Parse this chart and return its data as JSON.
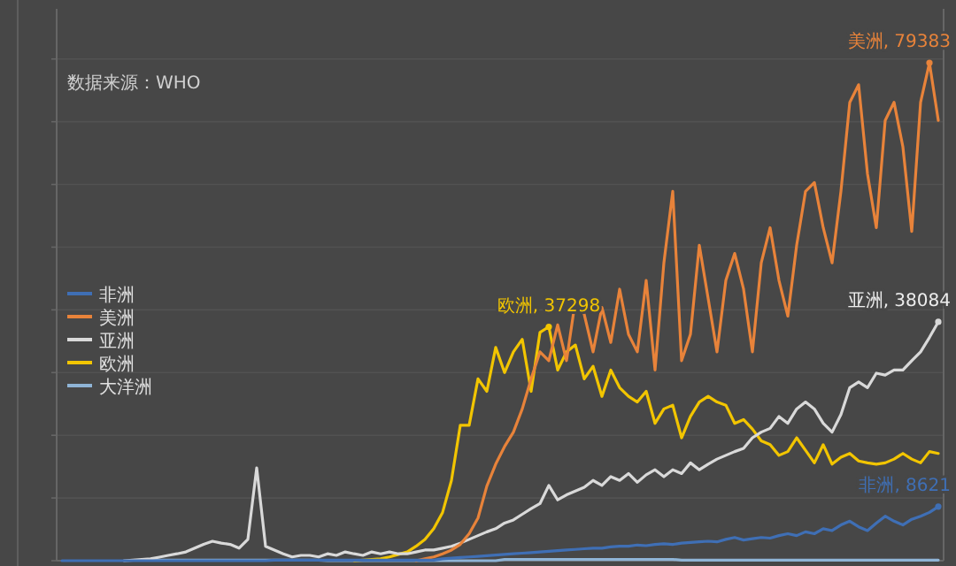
{
  "chart_data": {
    "type": "line",
    "annotations": [
      "数据来源：WHO"
    ],
    "categories": [
      null,
      null,
      null,
      null,
      null,
      null,
      null,
      null,
      null,
      null,
      null,
      null,
      null,
      null,
      null,
      null,
      null,
      null,
      null,
      null,
      null,
      null,
      null,
      null,
      null,
      null,
      null,
      null,
      null,
      null,
      null,
      null,
      null,
      null,
      null,
      null,
      null,
      null,
      null,
      null,
      null,
      null,
      null,
      null,
      null,
      null,
      null,
      null,
      null,
      null,
      null,
      null,
      null,
      null,
      null,
      null,
      null,
      null,
      null,
      null,
      null,
      null,
      null,
      null,
      null,
      null,
      null,
      null,
      null,
      null,
      null,
      null,
      null,
      null,
      null,
      null,
      null,
      null,
      null,
      null,
      null,
      null,
      null,
      null,
      null,
      null,
      null,
      null,
      null,
      null,
      null,
      null,
      null,
      null,
      null,
      null,
      null,
      null,
      null,
      null
    ],
    "ylim": [
      0,
      88000
    ],
    "yticks": [
      {
        "value": 0,
        "label": null
      },
      {
        "value": 10000,
        "label": null
      },
      {
        "value": 20000,
        "label": null
      },
      {
        "value": 30000,
        "label": null
      },
      {
        "value": 40000,
        "label": null
      },
      {
        "value": 50000,
        "label": null
      },
      {
        "value": 60000,
        "label": null
      },
      {
        "value": 70000,
        "label": null
      },
      {
        "value": 80000,
        "label": null
      }
    ],
    "grid": "y",
    "legend": "left",
    "series": [
      {
        "name": "非洲",
        "color": "#3f6fb5",
        "values": [
          0,
          0,
          0,
          0,
          0,
          0,
          0,
          0,
          0,
          0,
          0,
          0,
          0,
          0,
          0,
          0,
          0,
          0,
          0,
          0,
          0,
          0,
          0,
          0,
          100,
          100,
          100,
          100,
          100,
          100,
          100,
          100,
          100,
          100,
          100,
          100,
          100,
          100,
          100,
          100,
          100,
          100,
          100,
          300,
          400,
          500,
          600,
          700,
          800,
          900,
          1000,
          1100,
          1200,
          1300,
          1400,
          1500,
          1600,
          1700,
          1800,
          1900,
          2000,
          2000,
          2200,
          2300,
          2300,
          2500,
          2400,
          2600,
          2700,
          2600,
          2800,
          2900,
          3000,
          3100,
          3000,
          3400,
          3700,
          3300,
          3500,
          3700,
          3600,
          4000,
          4300,
          4000,
          4600,
          4300,
          5100,
          4800,
          5700,
          6300,
          5400,
          4800,
          6000,
          7100,
          6300,
          5700,
          6600,
          7100,
          7700,
          8621
        ],
        "value_labels": [
          null,
          null,
          null,
          null,
          null,
          null,
          null,
          null,
          null,
          null,
          null,
          null,
          null,
          null,
          null,
          null,
          null,
          null,
          null,
          null,
          null,
          null,
          null,
          null,
          null,
          null,
          null,
          null,
          null,
          null,
          null,
          null,
          null,
          null,
          null,
          null,
          null,
          null,
          null,
          null,
          null,
          null,
          null,
          null,
          null,
          null,
          null,
          null,
          null,
          null,
          null,
          null,
          null,
          null,
          null,
          null,
          null,
          null,
          null,
          null,
          null,
          null,
          null,
          null,
          null,
          null,
          null,
          null,
          null,
          null,
          null,
          null,
          null,
          null,
          null,
          null,
          null,
          null,
          null,
          null,
          null,
          null,
          null,
          null,
          null,
          null,
          null,
          null,
          null,
          null,
          null,
          null,
          null,
          null,
          null,
          null,
          null,
          null,
          null,
          "非洲, 8621"
        ]
      },
      {
        "name": "美洲",
        "color": "#e8833a",
        "values": [
          null,
          null,
          null,
          null,
          null,
          null,
          null,
          null,
          null,
          null,
          null,
          null,
          null,
          null,
          null,
          null,
          null,
          null,
          null,
          null,
          null,
          null,
          null,
          null,
          null,
          null,
          null,
          null,
          null,
          null,
          null,
          null,
          null,
          null,
          null,
          null,
          null,
          null,
          null,
          null,
          0,
          300,
          600,
          1100,
          1700,
          2600,
          4300,
          6800,
          11900,
          15400,
          18200,
          20500,
          24200,
          29000,
          33300,
          31900,
          37600,
          31900,
          41500,
          39300,
          33300,
          40400,
          34800,
          43300,
          36100,
          33300,
          44700,
          30400,
          47500,
          58900,
          31900,
          36100,
          50300,
          41800,
          33300,
          44700,
          49000,
          43300,
          33300,
          47500,
          53100,
          44700,
          39000,
          50300,
          58900,
          60300,
          53100,
          47500,
          58900,
          73100,
          75900,
          61700,
          53100,
          70200,
          73100,
          66000,
          52500,
          73100,
          79383,
          70200
        ],
        "value_labels": [
          null,
          null,
          null,
          null,
          null,
          null,
          null,
          null,
          null,
          null,
          null,
          null,
          null,
          null,
          null,
          null,
          null,
          null,
          null,
          null,
          null,
          null,
          null,
          null,
          null,
          null,
          null,
          null,
          null,
          null,
          null,
          null,
          null,
          null,
          null,
          null,
          null,
          null,
          null,
          null,
          null,
          null,
          null,
          null,
          null,
          null,
          null,
          null,
          null,
          null,
          null,
          null,
          null,
          null,
          null,
          null,
          null,
          null,
          null,
          null,
          null,
          null,
          null,
          null,
          null,
          null,
          null,
          null,
          null,
          null,
          null,
          null,
          null,
          null,
          null,
          null,
          null,
          null,
          null,
          null,
          null,
          null,
          null,
          null,
          null,
          null,
          null,
          null,
          null,
          null,
          null,
          null,
          null,
          null,
          null,
          null,
          null,
          null,
          "美洲, 79383",
          null
        ]
      },
      {
        "name": "亚洲",
        "color": "#d9d9d9",
        "values": [
          null,
          null,
          null,
          null,
          null,
          null,
          null,
          0,
          100,
          200,
          300,
          570,
          850,
          1100,
          1400,
          2000,
          2600,
          3100,
          2800,
          2600,
          2000,
          3400,
          14800,
          2300,
          1700,
          1100,
          600,
          850,
          850,
          600,
          1100,
          850,
          1400,
          1100,
          850,
          1400,
          1100,
          1400,
          1100,
          1100,
          1400,
          1700,
          1700,
          2000,
          2300,
          2800,
          3400,
          4000,
          4600,
          5100,
          6000,
          6500,
          7400,
          8300,
          9100,
          12000,
          9700,
          10500,
          11100,
          11700,
          12800,
          12000,
          13400,
          12800,
          13900,
          12500,
          13700,
          14500,
          13400,
          14500,
          13900,
          15600,
          14500,
          15400,
          16200,
          16800,
          17400,
          17900,
          19600,
          20500,
          21100,
          23000,
          21900,
          24200,
          25300,
          24200,
          21900,
          20500,
          23300,
          27600,
          28500,
          27600,
          29900,
          29600,
          30400,
          30400,
          31900,
          33300,
          35600,
          38084
        ],
        "value_labels": [
          null,
          null,
          null,
          null,
          null,
          null,
          null,
          null,
          null,
          null,
          null,
          null,
          null,
          null,
          null,
          null,
          null,
          null,
          null,
          null,
          null,
          null,
          null,
          null,
          null,
          null,
          null,
          null,
          null,
          null,
          null,
          null,
          null,
          null,
          null,
          null,
          null,
          null,
          null,
          null,
          null,
          null,
          null,
          null,
          null,
          null,
          null,
          null,
          null,
          null,
          null,
          null,
          null,
          null,
          null,
          null,
          null,
          null,
          null,
          null,
          null,
          null,
          null,
          null,
          null,
          null,
          null,
          null,
          null,
          null,
          null,
          null,
          null,
          null,
          null,
          null,
          null,
          null,
          null,
          null,
          null,
          null,
          null,
          null,
          null,
          null,
          null,
          null,
          null,
          null,
          null,
          null,
          null,
          null,
          null,
          null,
          null,
          null,
          null,
          "亚洲, 38084"
        ]
      },
      {
        "name": "欧洲",
        "color": "#f2c500",
        "values": [
          null,
          null,
          null,
          null,
          null,
          null,
          null,
          null,
          null,
          null,
          null,
          null,
          null,
          null,
          null,
          null,
          null,
          null,
          null,
          null,
          null,
          null,
          null,
          null,
          null,
          null,
          null,
          null,
          null,
          null,
          null,
          null,
          null,
          0,
          100,
          200,
          300,
          600,
          1000,
          1400,
          2300,
          3400,
          5100,
          7700,
          12800,
          21600,
          21600,
          29000,
          27000,
          34000,
          30000,
          33300,
          35300,
          27000,
          36400,
          37298,
          30400,
          33300,
          34400,
          29000,
          31000,
          26200,
          30400,
          27600,
          26200,
          25300,
          27000,
          21900,
          24200,
          24800,
          19600,
          23000,
          25300,
          26200,
          25300,
          24800,
          21900,
          22500,
          21000,
          19100,
          18500,
          16800,
          17400,
          19600,
          17600,
          15600,
          18500,
          15400,
          16500,
          17100,
          15900,
          15600,
          15400,
          15600,
          16200,
          17100,
          16200,
          15600,
          17400,
          17100
        ],
        "value_labels": [
          null,
          null,
          null,
          null,
          null,
          null,
          null,
          null,
          null,
          null,
          null,
          null,
          null,
          null,
          null,
          null,
          null,
          null,
          null,
          null,
          null,
          null,
          null,
          null,
          null,
          null,
          null,
          null,
          null,
          null,
          null,
          null,
          null,
          null,
          null,
          null,
          null,
          null,
          null,
          null,
          null,
          null,
          null,
          null,
          null,
          null,
          null,
          null,
          null,
          null,
          null,
          null,
          null,
          null,
          null,
          "欧洲, 37298",
          null,
          null,
          null,
          null,
          null,
          null,
          null,
          null,
          null,
          null,
          null,
          null,
          null,
          null,
          null,
          null,
          null,
          null,
          null,
          null,
          null,
          null,
          null,
          null,
          null,
          null,
          null,
          null,
          null,
          null,
          null,
          null,
          null,
          null,
          null,
          null,
          null,
          null,
          null,
          null,
          null,
          null,
          null,
          null
        ]
      },
      {
        "name": "大洋洲",
        "color": "#8fb4d6",
        "values": [
          null,
          null,
          null,
          null,
          null,
          null,
          null,
          null,
          null,
          null,
          100,
          100,
          100,
          100,
          100,
          100,
          100,
          100,
          100,
          100,
          100,
          100,
          100,
          100,
          100,
          100,
          100,
          100,
          100,
          100,
          0,
          0,
          0,
          0,
          0,
          0,
          0,
          0,
          0,
          0,
          0,
          0,
          0,
          0,
          0,
          0,
          0,
          0,
          0,
          0,
          200,
          200,
          200,
          200,
          200,
          200,
          200,
          200,
          200,
          200,
          200,
          200,
          200,
          200,
          200,
          200,
          200,
          200,
          200,
          200,
          100,
          100,
          100,
          100,
          100,
          100,
          100,
          100,
          100,
          100,
          100,
          100,
          100,
          100,
          100,
          100,
          100,
          100,
          100,
          100,
          100,
          100,
          100,
          100,
          100,
          100,
          100,
          100,
          100,
          100
        ]
      }
    ]
  }
}
